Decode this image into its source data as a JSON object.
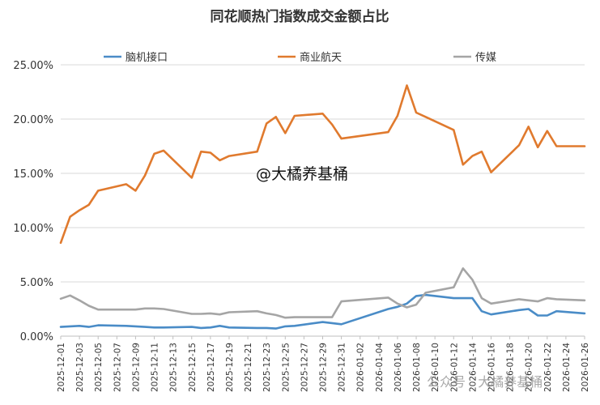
{
  "watermark": "@大橘养基桶",
  "watermark_footer": "公众号 · 大橘养基桶",
  "chart_data": {
    "type": "line",
    "title": "同花顺热门指数成交金额占比",
    "xlabel": "",
    "ylabel": "",
    "ylim": [
      0,
      25
    ],
    "y_ticks": [
      "0.00%",
      "5.00%",
      "10.00%",
      "15.00%",
      "20.00%",
      "25.00%"
    ],
    "grid": "horizontal",
    "legend_position": "top",
    "x": [
      "2025-12-01",
      "2025-12-02",
      "2025-12-03",
      "2025-12-04",
      "2025-12-05",
      "2025-12-08",
      "2025-12-09",
      "2025-12-10",
      "2025-12-11",
      "2025-12-12",
      "2025-12-15",
      "2025-12-16",
      "2025-12-17",
      "2025-12-18",
      "2025-12-19",
      "2025-12-22",
      "2025-12-23",
      "2025-12-24",
      "2025-12-25",
      "2025-12-26",
      "2025-12-29",
      "2025-12-30",
      "2025-12-31",
      "2026-01-05",
      "2026-01-06",
      "2026-01-07",
      "2026-01-08",
      "2026-01-09",
      "2026-01-12",
      "2026-01-13",
      "2026-01-14",
      "2026-01-15",
      "2026-01-16",
      "2026-01-19",
      "2026-01-20",
      "2026-01-21",
      "2026-01-22",
      "2026-01-23",
      "2026-01-26"
    ],
    "x_tick_labels": [
      "2025-12-01",
      "2025-12-03",
      "2025-12-05",
      "2025-12-07",
      "2025-12-09",
      "2025-12-11",
      "2025-12-13",
      "2025-12-15",
      "2025-12-17",
      "2025-12-19",
      "2025-12-21",
      "2025-12-23",
      "2025-12-25",
      "2025-12-27",
      "2025-12-29",
      "2025-12-31",
      "2026-01-02",
      "2026-01-04",
      "2026-01-06",
      "2026-01-08",
      "2026-01-10",
      "2026-01-12",
      "2026-01-14",
      "2026-01-16",
      "2026-01-18",
      "2026-01-20",
      "2026-01-22",
      "2026-01-24",
      "2026-01-26"
    ],
    "series": [
      {
        "name": "脑机接口",
        "color": "#4a8cc7",
        "values": [
          0.85,
          0.9,
          0.95,
          0.85,
          1.0,
          0.95,
          0.9,
          0.85,
          0.8,
          0.8,
          0.85,
          0.75,
          0.8,
          0.95,
          0.8,
          0.75,
          0.75,
          0.7,
          0.9,
          0.95,
          1.3,
          1.2,
          1.1,
          2.5,
          2.7,
          3.0,
          3.7,
          3.8,
          3.5,
          3.5,
          3.5,
          2.3,
          2.0,
          2.4,
          2.5,
          1.9,
          1.9,
          2.3,
          2.1
        ]
      },
      {
        "name": "商业航天",
        "color": "#e07a2e",
        "values": [
          8.6,
          11.0,
          11.6,
          12.1,
          13.4,
          14.0,
          13.4,
          14.8,
          16.8,
          17.1,
          14.6,
          17.0,
          16.9,
          16.2,
          16.6,
          17.0,
          19.6,
          20.2,
          18.7,
          20.3,
          20.5,
          19.5,
          18.2,
          18.8,
          20.3,
          23.1,
          20.6,
          20.2,
          19.0,
          15.8,
          16.6,
          17.0,
          15.1,
          17.6,
          19.3,
          17.4,
          18.9,
          17.5,
          17.5
        ]
      },
      {
        "name": "传媒",
        "color": "#a5a5a5",
        "values": [
          3.45,
          3.75,
          3.3,
          2.8,
          2.45,
          2.45,
          2.45,
          2.55,
          2.55,
          2.5,
          2.05,
          2.05,
          2.1,
          2.0,
          2.2,
          2.3,
          2.1,
          1.95,
          1.7,
          1.75,
          1.75,
          1.75,
          3.2,
          3.55,
          3.0,
          2.65,
          2.9,
          4.0,
          4.5,
          6.25,
          5.2,
          3.5,
          3.0,
          3.4,
          3.3,
          3.2,
          3.5,
          3.4,
          3.3
        ]
      }
    ]
  }
}
